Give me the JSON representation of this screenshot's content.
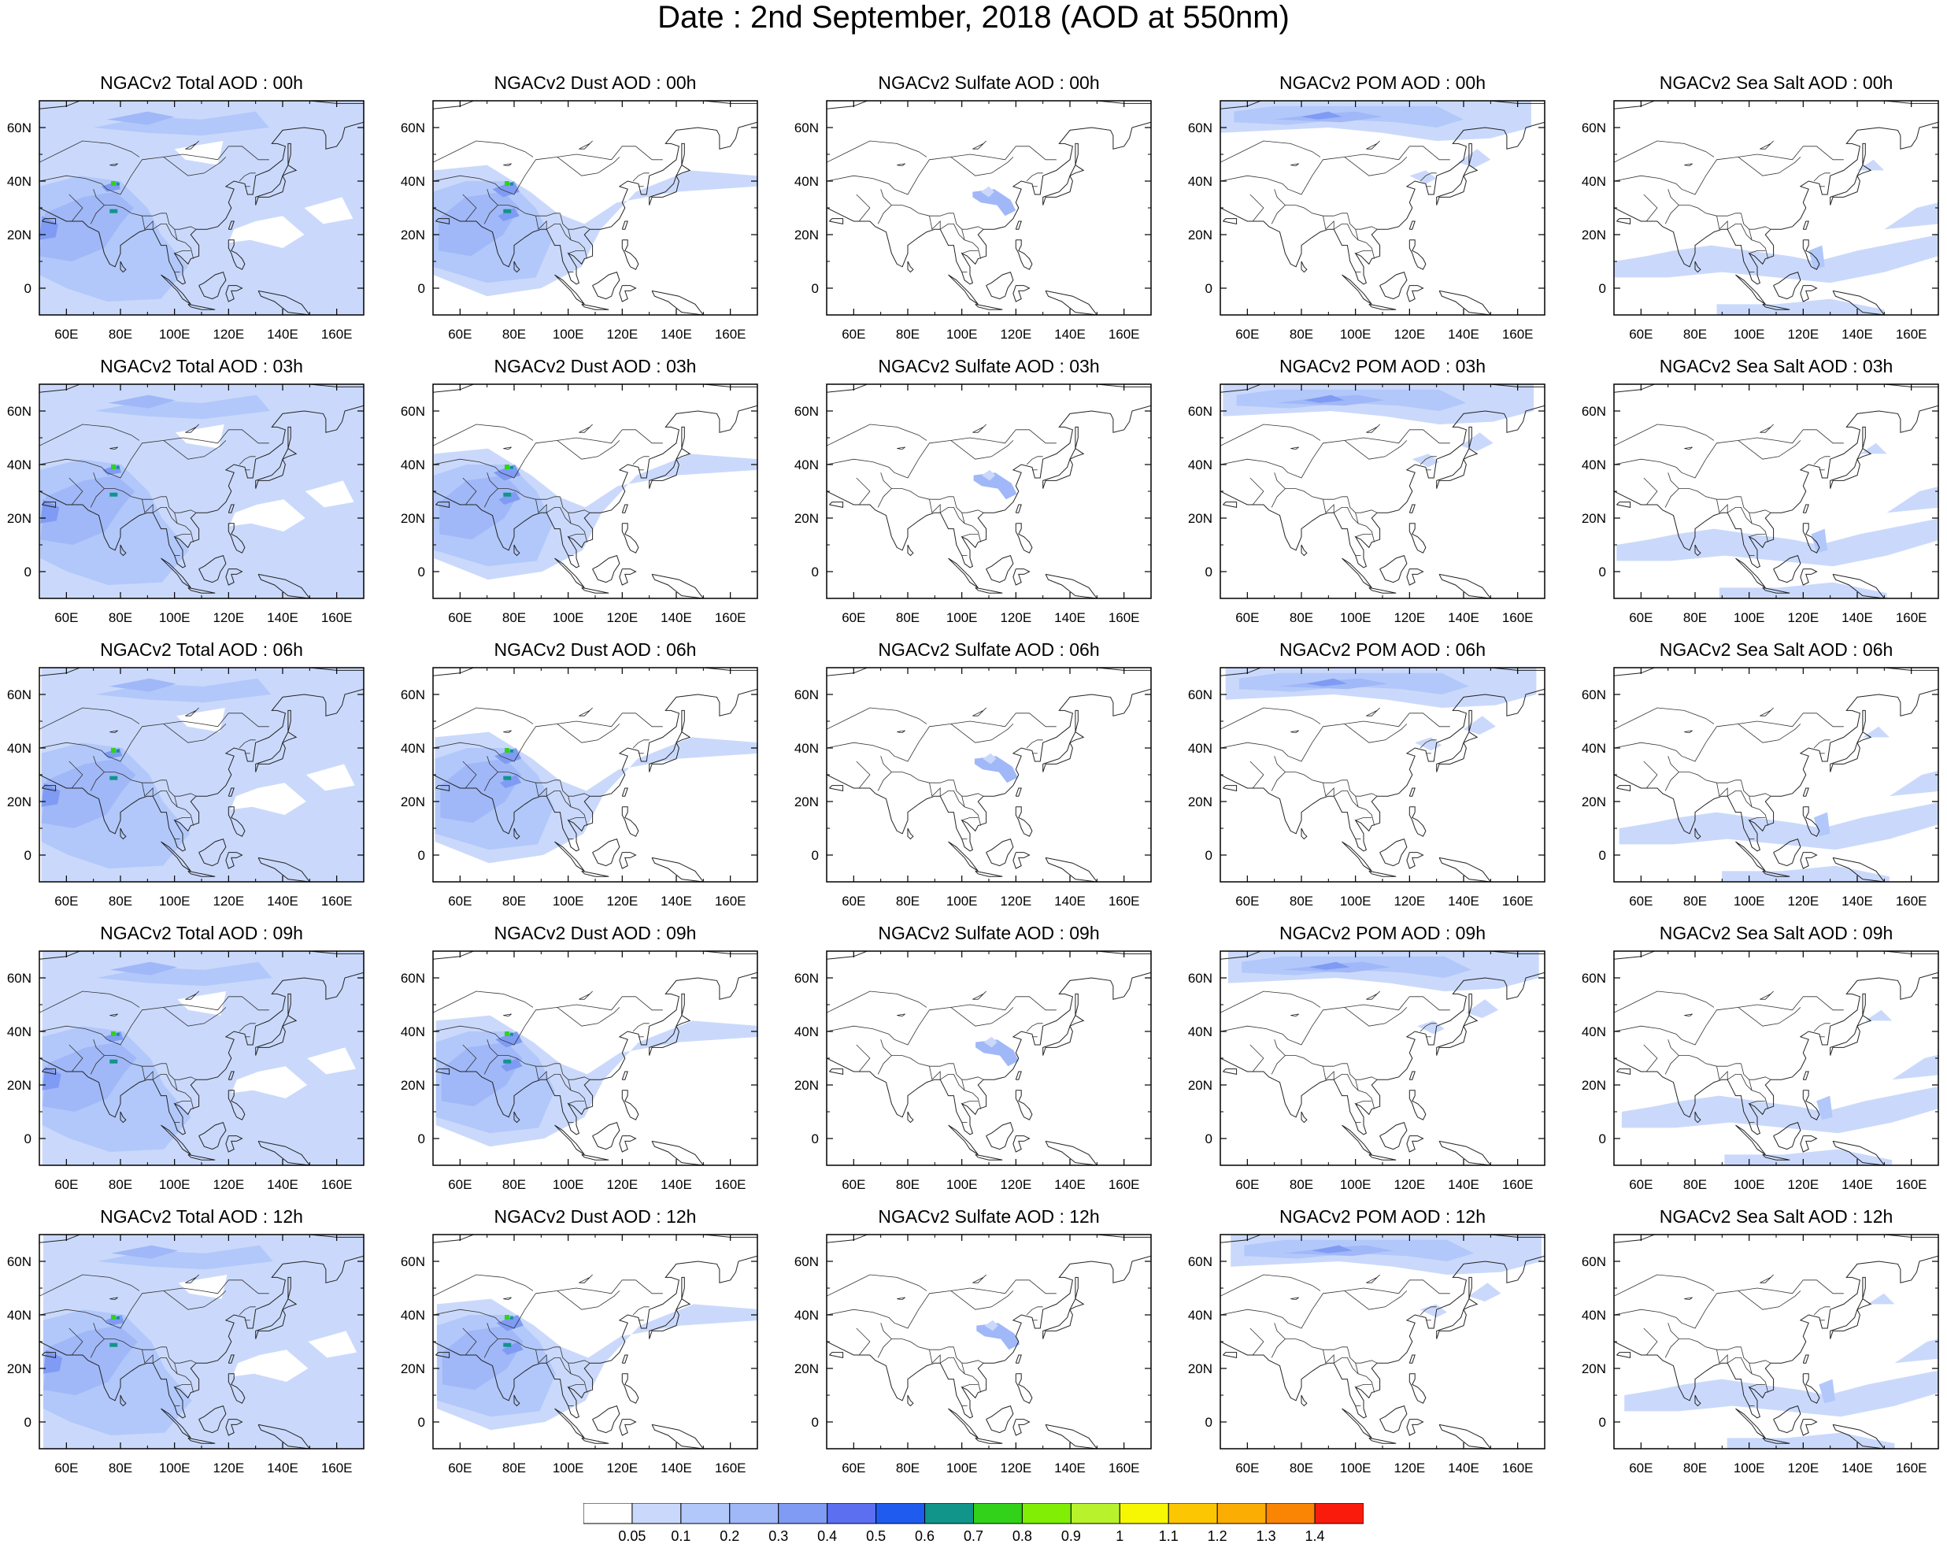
{
  "title": "Date : 2nd September, 2018 (AOD at 550nm)",
  "axes": {
    "x_ticks": [
      "60E",
      "80E",
      "100E",
      "120E",
      "140E",
      "160E"
    ],
    "y_ticks": [
      "60N",
      "40N",
      "20N",
      "0"
    ],
    "x_tick_values": [
      60,
      80,
      100,
      120,
      140,
      160
    ],
    "y_tick_values": [
      60,
      40,
      20,
      0
    ],
    "lon_range": [
      50,
      170
    ],
    "lat_range": [
      -10,
      70
    ]
  },
  "panels": [
    [
      "NGACv2 Total AOD : 00h",
      "NGACv2 Dust AOD : 00h",
      "NGACv2 Sulfate AOD : 00h",
      "NGACv2 POM AOD : 00h",
      "NGACv2 Sea Salt AOD : 00h"
    ],
    [
      "NGACv2 Total AOD : 03h",
      "NGACv2 Dust AOD : 03h",
      "NGACv2 Sulfate AOD : 03h",
      "NGACv2 POM AOD : 03h",
      "NGACv2 Sea Salt AOD : 03h"
    ],
    [
      "NGACv2 Total AOD : 06h",
      "NGACv2 Dust AOD : 06h",
      "NGACv2 Sulfate AOD : 06h",
      "NGACv2 POM AOD : 06h",
      "NGACv2 Sea Salt AOD : 06h"
    ],
    [
      "NGACv2 Total AOD : 09h",
      "NGACv2 Dust AOD : 09h",
      "NGACv2 Sulfate AOD : 09h",
      "NGACv2 POM AOD : 09h",
      "NGACv2 Sea Salt  AOD : 09h"
    ],
    [
      "NGACv2 Total AOD  : 12h",
      "NGACv2 Dust AOD : 12h",
      "NGACv2 Sulfate AOD : 12h",
      "NGACv2 POM  AOD : 12h",
      "NGACv2 Sea Salt  AOD : 12h"
    ]
  ],
  "colorbar": {
    "labels": [
      "0.05",
      "0.1",
      "0.2",
      "0.3",
      "0.4",
      "0.5",
      "0.6",
      "0.7",
      "0.8",
      "0.9",
      "1",
      "1.1",
      "1.2",
      "1.3",
      "1.4"
    ],
    "colors": [
      "#ffffff",
      "#cad9fb",
      "#b2c8fa",
      "#a0b8f8",
      "#7f9bf3",
      "#5b6ff0",
      "#1f5bef",
      "#11948a",
      "#32d11a",
      "#80ee05",
      "#b8f22c",
      "#f7f603",
      "#fcc602",
      "#fcad03",
      "#fa8403",
      "#f91c0c"
    ]
  },
  "aod_colors": {
    "total": "#b2c8fa",
    "dust": "#b2c8fa",
    "sulfate": "#a0b8f8",
    "pom": "#b2c8fa",
    "seasalt": "#cad9fb"
  }
}
